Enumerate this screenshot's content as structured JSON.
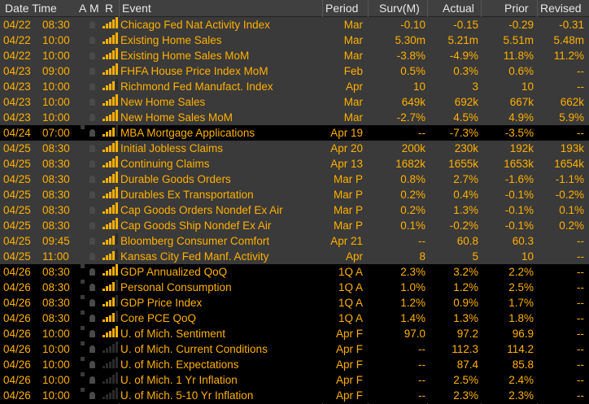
{
  "colors": {
    "text": "#ffb000",
    "header_bg": "#404040",
    "header_text": "#e8e8e8",
    "row_even": "#000000",
    "row_odd": "#3a3a3a",
    "row_light": "#1e1e1e",
    "bar_on": "#ffb000",
    "bar_off": "#2a2a2a"
  },
  "header": {
    "date_time": "Date Time",
    "a": "A",
    "m": "M",
    "r": "R",
    "event": "Event",
    "period": "Period",
    "surv": "Surv(M)",
    "actual": "Actual",
    "prior": "Prior",
    "revised": "Revised"
  },
  "rows": [
    {
      "date": "04/22",
      "time": "08:30",
      "bars": 5,
      "event": "Chicago Fed Nat Activity Index",
      "period": "Mar",
      "surv": "-0.10",
      "actual": "-0.15",
      "prior": "-0.29",
      "revised": "-0.31",
      "style": "odd"
    },
    {
      "date": "04/22",
      "time": "10:00",
      "bars": 5,
      "event": "Existing Home Sales",
      "period": "Mar",
      "surv": "5.30m",
      "actual": "5.21m",
      "prior": "5.51m",
      "revised": "5.48m",
      "style": "odd"
    },
    {
      "date": "04/22",
      "time": "10:00",
      "bars": 5,
      "event": "Existing Home Sales MoM",
      "period": "Mar",
      "surv": "-3.8%",
      "actual": "-4.9%",
      "prior": "11.8%",
      "revised": "11.2%",
      "style": "odd"
    },
    {
      "date": "04/23",
      "time": "09:00",
      "bars": 5,
      "event": "FHFA House Price Index MoM",
      "period": "Feb",
      "surv": "0.5%",
      "actual": "0.3%",
      "prior": "0.6%",
      "revised": "--",
      "style": "odd"
    },
    {
      "date": "04/23",
      "time": "10:00",
      "bars": 4,
      "event": "Richmond Fed Manufact. Index",
      "period": "Apr",
      "surv": "10",
      "actual": "3",
      "prior": "10",
      "revised": "--",
      "style": "odd"
    },
    {
      "date": "04/23",
      "time": "10:00",
      "bars": 5,
      "event": "New Home Sales",
      "period": "Mar",
      "surv": "649k",
      "actual": "692k",
      "prior": "667k",
      "revised": "662k",
      "style": "odd"
    },
    {
      "date": "04/23",
      "time": "10:00",
      "bars": 5,
      "event": "New Home Sales MoM",
      "period": "Mar",
      "surv": "-2.7%",
      "actual": "4.5%",
      "prior": "4.9%",
      "revised": "5.9%",
      "style": "odd"
    },
    {
      "date": "04/24",
      "time": "07:00",
      "bars": 4,
      "event": "MBA Mortgage Applications",
      "period": "Apr 19",
      "surv": "--",
      "actual": "-7.3%",
      "prior": "-3.5%",
      "revised": "--",
      "style": "even"
    },
    {
      "date": "04/25",
      "time": "08:30",
      "bars": 5,
      "event": "Initial Jobless Claims",
      "period": "Apr 20",
      "surv": "200k",
      "actual": "230k",
      "prior": "192k",
      "revised": "193k",
      "style": "odd"
    },
    {
      "date": "04/25",
      "time": "08:30",
      "bars": 5,
      "event": "Continuing Claims",
      "period": "Apr 13",
      "surv": "1682k",
      "actual": "1655k",
      "prior": "1653k",
      "revised": "1654k",
      "style": "odd"
    },
    {
      "date": "04/25",
      "time": "08:30",
      "bars": 5,
      "event": "Durable Goods Orders",
      "period": "Mar P",
      "surv": "0.8%",
      "actual": "2.7%",
      "prior": "-1.6%",
      "revised": "-1.1%",
      "style": "odd"
    },
    {
      "date": "04/25",
      "time": "08:30",
      "bars": 5,
      "event": "Durables Ex Transportation",
      "period": "Mar P",
      "surv": "0.2%",
      "actual": "0.4%",
      "prior": "-0.1%",
      "revised": "-0.2%",
      "style": "odd"
    },
    {
      "date": "04/25",
      "time": "08:30",
      "bars": 5,
      "event": "Cap Goods Orders Nondef Ex Air",
      "period": "Mar P",
      "surv": "0.2%",
      "actual": "1.3%",
      "prior": "-0.1%",
      "revised": "0.1%",
      "style": "odd"
    },
    {
      "date": "04/25",
      "time": "08:30",
      "bars": 5,
      "event": "Cap Goods Ship Nondef Ex Air",
      "period": "Mar P",
      "surv": "0.1%",
      "actual": "-0.2%",
      "prior": "-0.1%",
      "revised": "0.2%",
      "style": "odd"
    },
    {
      "date": "04/25",
      "time": "09:45",
      "bars": 4,
      "event": "Bloomberg Consumer Comfort",
      "period": "Apr 21",
      "surv": "--",
      "actual": "60.8",
      "prior": "60.3",
      "revised": "--",
      "style": "odd"
    },
    {
      "date": "04/25",
      "time": "11:00",
      "bars": 4,
      "event": "Kansas City Fed Manf. Activity",
      "period": "Apr",
      "surv": "8",
      "actual": "5",
      "prior": "10",
      "revised": "--",
      "style": "odd"
    },
    {
      "date": "04/26",
      "time": "08:30",
      "bars": 5,
      "event": "GDP Annualized QoQ",
      "period": "1Q A",
      "surv": "2.3%",
      "actual": "3.2%",
      "prior": "2.2%",
      "revised": "--",
      "style": "even"
    },
    {
      "date": "04/26",
      "time": "08:30",
      "bars": 4,
      "event": "Personal Consumption",
      "period": "1Q A",
      "surv": "1.0%",
      "actual": "1.2%",
      "prior": "2.5%",
      "revised": "--",
      "style": "even"
    },
    {
      "date": "04/26",
      "time": "08:30",
      "bars": 4,
      "event": "GDP Price Index",
      "period": "1Q A",
      "surv": "1.2%",
      "actual": "0.9%",
      "prior": "1.7%",
      "revised": "--",
      "style": "even"
    },
    {
      "date": "04/26",
      "time": "08:30",
      "bars": 4,
      "event": "Core PCE QoQ",
      "period": "1Q A",
      "surv": "1.4%",
      "actual": "1.3%",
      "prior": "1.8%",
      "revised": "--",
      "style": "even"
    },
    {
      "date": "04/26",
      "time": "10:00",
      "bars": 5,
      "event": "U. of Mich. Sentiment",
      "period": "Apr F",
      "surv": "97.0",
      "actual": "97.2",
      "prior": "96.9",
      "revised": "--",
      "style": "even"
    },
    {
      "date": "04/26",
      "time": "10:00",
      "bars": 0,
      "event": "U. of Mich. Current Conditions",
      "period": "Apr F",
      "surv": "--",
      "actual": "112.3",
      "prior": "114.2",
      "revised": "--",
      "style": "even"
    },
    {
      "date": "04/26",
      "time": "10:00",
      "bars": 0,
      "event": "U. of Mich. Expectations",
      "period": "Apr F",
      "surv": "--",
      "actual": "87.4",
      "prior": "85.8",
      "revised": "--",
      "style": "even"
    },
    {
      "date": "04/26",
      "time": "10:00",
      "bars": 0,
      "event": "U. of Mich. 1 Yr Inflation",
      "period": "Apr F",
      "surv": "--",
      "actual": "2.5%",
      "prior": "2.4%",
      "revised": "--",
      "style": "even"
    },
    {
      "date": "04/26",
      "time": "10:00",
      "bars": 0,
      "event": "U. of Mich. 5-10 Yr Inflation",
      "period": "Apr F",
      "surv": "--",
      "actual": "2.3%",
      "prior": "2.3%",
      "revised": "--",
      "style": "even"
    }
  ]
}
